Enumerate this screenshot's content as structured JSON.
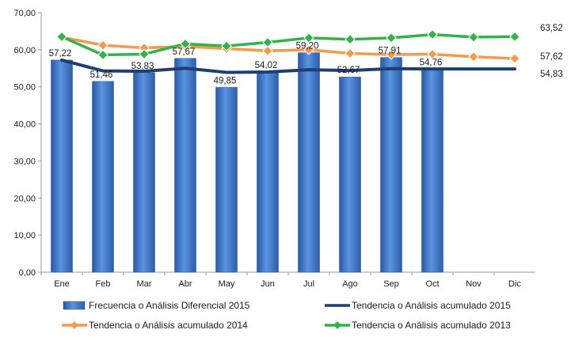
{
  "chart_data": {
    "type": "bar",
    "categories": [
      "Ene",
      "Feb",
      "Mar",
      "Abr",
      "May",
      "Jun",
      "Jul",
      "Ago",
      "Sep",
      "Oct",
      "Nov",
      "Dic"
    ],
    "ylim": [
      0,
      70
    ],
    "yticks": [
      "0,00",
      "10,00",
      "20,00",
      "30,00",
      "40,00",
      "50,00",
      "60,00",
      "70,00"
    ],
    "grid": false,
    "legend_position": "bottom",
    "series": [
      {
        "name": "Frecuencia o Análisis Diferencial 2015",
        "kind": "bar",
        "color": "#3f78c9",
        "values": [
          57.22,
          51.46,
          53.83,
          57.67,
          49.85,
          54.02,
          59.2,
          52.67,
          57.91,
          54.76,
          null,
          null
        ],
        "labels": [
          "57,22",
          "51,46",
          "53,83",
          "57,67",
          "49,85",
          "54,02",
          "59,20",
          "52,67",
          "57,91",
          "54,76",
          "",
          ""
        ]
      },
      {
        "name": "Tendencia o Análisis acumulado 2015",
        "kind": "line",
        "color": "#1f3f73",
        "values": [
          57.2,
          54.3,
          54.2,
          55.0,
          53.9,
          54.0,
          54.6,
          54.4,
          54.9,
          54.83,
          54.83,
          54.83
        ],
        "end_label": "54,83"
      },
      {
        "name": "Tendencia o Análisis acumulado 2014",
        "kind": "line",
        "color": "#f39b4c",
        "values": [
          63.4,
          61.2,
          60.5,
          60.9,
          60.3,
          59.7,
          60.0,
          59.0,
          58.7,
          58.8,
          58.1,
          57.62
        ],
        "end_label": "57,62"
      },
      {
        "name": "Tendencia o Análisis acumulado 2013",
        "kind": "line",
        "color": "#2fb34a",
        "values": [
          63.5,
          58.6,
          58.8,
          61.6,
          61.0,
          62.0,
          63.2,
          62.8,
          63.2,
          64.1,
          63.4,
          63.52
        ],
        "end_label": "63,52"
      }
    ]
  }
}
